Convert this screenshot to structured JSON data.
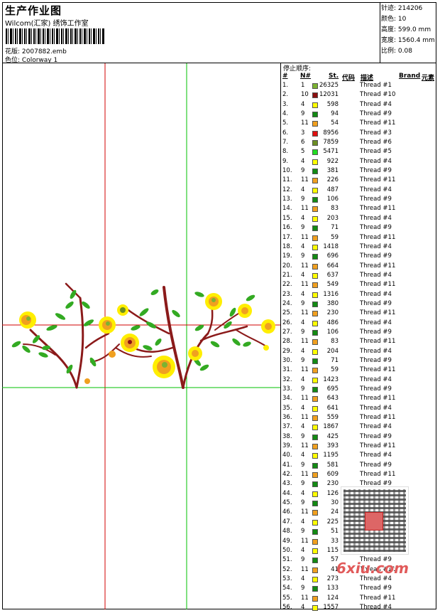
{
  "header": {
    "title": "生产作业图",
    "company": "Wilcom(汇家) 绣饰工作室",
    "design_label": "花版:",
    "design_value": "2007882.emb",
    "color_label": "色位:",
    "color_value": "Colorway 1"
  },
  "stats": [
    {
      "label": "针迹:",
      "value": "214206"
    },
    {
      "label": "颜色:",
      "value": "10"
    },
    {
      "label": "高度:",
      "value": "599.0 mm"
    },
    {
      "label": "宽度:",
      "value": "1560.4 mm"
    },
    {
      "label": "比例:",
      "value": "0.08"
    }
  ],
  "stop_sequence": {
    "label": "停止顺序:",
    "headers": {
      "idx": "#",
      "n": "N#",
      "st": "St.",
      "code": "代码",
      "desc": "描述",
      "brand": "Brand",
      "element": "元素"
    },
    "rows": [
      {
        "i": "1.",
        "n": "1",
        "c": "#7bb331",
        "st": "26325",
        "d": "Thread #1"
      },
      {
        "i": "2.",
        "n": "10",
        "c": "#8b1010",
        "st": "12031",
        "d": "Thread #10"
      },
      {
        "i": "3.",
        "n": "4",
        "c": "#ffff00",
        "st": "598",
        "d": "Thread #4"
      },
      {
        "i": "4.",
        "n": "9",
        "c": "#138a13",
        "st": "94",
        "d": "Thread #9"
      },
      {
        "i": "5.",
        "n": "11",
        "c": "#f0a020",
        "st": "54",
        "d": "Thread #11"
      },
      {
        "i": "6.",
        "n": "3",
        "c": "#e01010",
        "st": "8956",
        "d": "Thread #3"
      },
      {
        "i": "7.",
        "n": "6",
        "c": "#6b8e23",
        "st": "7859",
        "d": "Thread #6"
      },
      {
        "i": "8.",
        "n": "5",
        "c": "#22dd22",
        "st": "5471",
        "d": "Thread #5"
      },
      {
        "i": "9.",
        "n": "4",
        "c": "#ffff00",
        "st": "922",
        "d": "Thread #4"
      },
      {
        "i": "10.",
        "n": "9",
        "c": "#138a13",
        "st": "381",
        "d": "Thread #9"
      },
      {
        "i": "11.",
        "n": "11",
        "c": "#f0a020",
        "st": "226",
        "d": "Thread #11"
      },
      {
        "i": "12.",
        "n": "4",
        "c": "#ffff00",
        "st": "487",
        "d": "Thread #4"
      },
      {
        "i": "13.",
        "n": "9",
        "c": "#138a13",
        "st": "106",
        "d": "Thread #9"
      },
      {
        "i": "14.",
        "n": "11",
        "c": "#f0a020",
        "st": "83",
        "d": "Thread #11"
      },
      {
        "i": "15.",
        "n": "4",
        "c": "#ffff00",
        "st": "203",
        "d": "Thread #4"
      },
      {
        "i": "16.",
        "n": "9",
        "c": "#138a13",
        "st": "71",
        "d": "Thread #9"
      },
      {
        "i": "17.",
        "n": "11",
        "c": "#f0a020",
        "st": "59",
        "d": "Thread #11"
      },
      {
        "i": "18.",
        "n": "4",
        "c": "#ffff00",
        "st": "1418",
        "d": "Thread #4"
      },
      {
        "i": "19.",
        "n": "9",
        "c": "#138a13",
        "st": "696",
        "d": "Thread #9"
      },
      {
        "i": "20.",
        "n": "11",
        "c": "#f0a020",
        "st": "664",
        "d": "Thread #11"
      },
      {
        "i": "21.",
        "n": "4",
        "c": "#ffff00",
        "st": "637",
        "d": "Thread #4"
      },
      {
        "i": "22.",
        "n": "11",
        "c": "#f0a020",
        "st": "549",
        "d": "Thread #11"
      },
      {
        "i": "23.",
        "n": "4",
        "c": "#ffff00",
        "st": "1316",
        "d": "Thread #4"
      },
      {
        "i": "24.",
        "n": "9",
        "c": "#138a13",
        "st": "380",
        "d": "Thread #9"
      },
      {
        "i": "25.",
        "n": "11",
        "c": "#f0a020",
        "st": "230",
        "d": "Thread #11"
      },
      {
        "i": "26.",
        "n": "4",
        "c": "#ffff00",
        "st": "486",
        "d": "Thread #4"
      },
      {
        "i": "27.",
        "n": "9",
        "c": "#138a13",
        "st": "106",
        "d": "Thread #9"
      },
      {
        "i": "28.",
        "n": "11",
        "c": "#f0a020",
        "st": "83",
        "d": "Thread #11"
      },
      {
        "i": "29.",
        "n": "4",
        "c": "#ffff00",
        "st": "204",
        "d": "Thread #4"
      },
      {
        "i": "30.",
        "n": "9",
        "c": "#138a13",
        "st": "71",
        "d": "Thread #9"
      },
      {
        "i": "31.",
        "n": "11",
        "c": "#f0a020",
        "st": "59",
        "d": "Thread #11"
      },
      {
        "i": "32.",
        "n": "4",
        "c": "#ffff00",
        "st": "1423",
        "d": "Thread #4"
      },
      {
        "i": "33.",
        "n": "9",
        "c": "#138a13",
        "st": "695",
        "d": "Thread #9"
      },
      {
        "i": "34.",
        "n": "11",
        "c": "#f0a020",
        "st": "643",
        "d": "Thread #11"
      },
      {
        "i": "35.",
        "n": "4",
        "c": "#ffff00",
        "st": "641",
        "d": "Thread #4"
      },
      {
        "i": "36.",
        "n": "11",
        "c": "#f0a020",
        "st": "559",
        "d": "Thread #11"
      },
      {
        "i": "37.",
        "n": "4",
        "c": "#ffff00",
        "st": "1867",
        "d": "Thread #4"
      },
      {
        "i": "38.",
        "n": "9",
        "c": "#138a13",
        "st": "425",
        "d": "Thread #9"
      },
      {
        "i": "39.",
        "n": "11",
        "c": "#f0a020",
        "st": "393",
        "d": "Thread #11"
      },
      {
        "i": "40.",
        "n": "4",
        "c": "#ffff00",
        "st": "1195",
        "d": "Thread #4"
      },
      {
        "i": "41.",
        "n": "9",
        "c": "#138a13",
        "st": "581",
        "d": "Thread #9"
      },
      {
        "i": "42.",
        "n": "11",
        "c": "#f0a020",
        "st": "609",
        "d": "Thread #11"
      },
      {
        "i": "43.",
        "n": "9",
        "c": "#138a13",
        "st": "230",
        "d": "Thread #9"
      },
      {
        "i": "44.",
        "n": "4",
        "c": "#ffff00",
        "st": "126",
        "d": "Thread #4"
      },
      {
        "i": "45.",
        "n": "9",
        "c": "#138a13",
        "st": "30",
        "d": "Thread #9"
      },
      {
        "i": "46.",
        "n": "11",
        "c": "#f0a020",
        "st": "24",
        "d": "Thread #11"
      },
      {
        "i": "47.",
        "n": "4",
        "c": "#ffff00",
        "st": "225",
        "d": "Thread #4"
      },
      {
        "i": "48.",
        "n": "9",
        "c": "#138a13",
        "st": "51",
        "d": "Thread #9"
      },
      {
        "i": "49.",
        "n": "11",
        "c": "#f0a020",
        "st": "33",
        "d": "Thread #11"
      },
      {
        "i": "50.",
        "n": "4",
        "c": "#ffff00",
        "st": "115",
        "d": "Thread #4"
      },
      {
        "i": "51.",
        "n": "9",
        "c": "#138a13",
        "st": "57",
        "d": "Thread #9"
      },
      {
        "i": "52.",
        "n": "11",
        "c": "#f0a020",
        "st": "41",
        "d": "Thread #11"
      },
      {
        "i": "53.",
        "n": "4",
        "c": "#ffff00",
        "st": "273",
        "d": "Thread #4"
      },
      {
        "i": "54.",
        "n": "9",
        "c": "#138a13",
        "st": "133",
        "d": "Thread #9"
      },
      {
        "i": "55.",
        "n": "11",
        "c": "#f0a020",
        "st": "124",
        "d": "Thread #11"
      },
      {
        "i": "56.",
        "n": "4",
        "c": "#ffff00",
        "st": "1557",
        "d": "Thread #4"
      }
    ]
  },
  "watermark": {
    "site": "6xiu.com"
  },
  "colors": {
    "guide_red": "#d00000",
    "guide_green": "#00c000",
    "stem": "#8b1a1a",
    "leaf": "#33aa22",
    "flower": "#ffee00"
  }
}
